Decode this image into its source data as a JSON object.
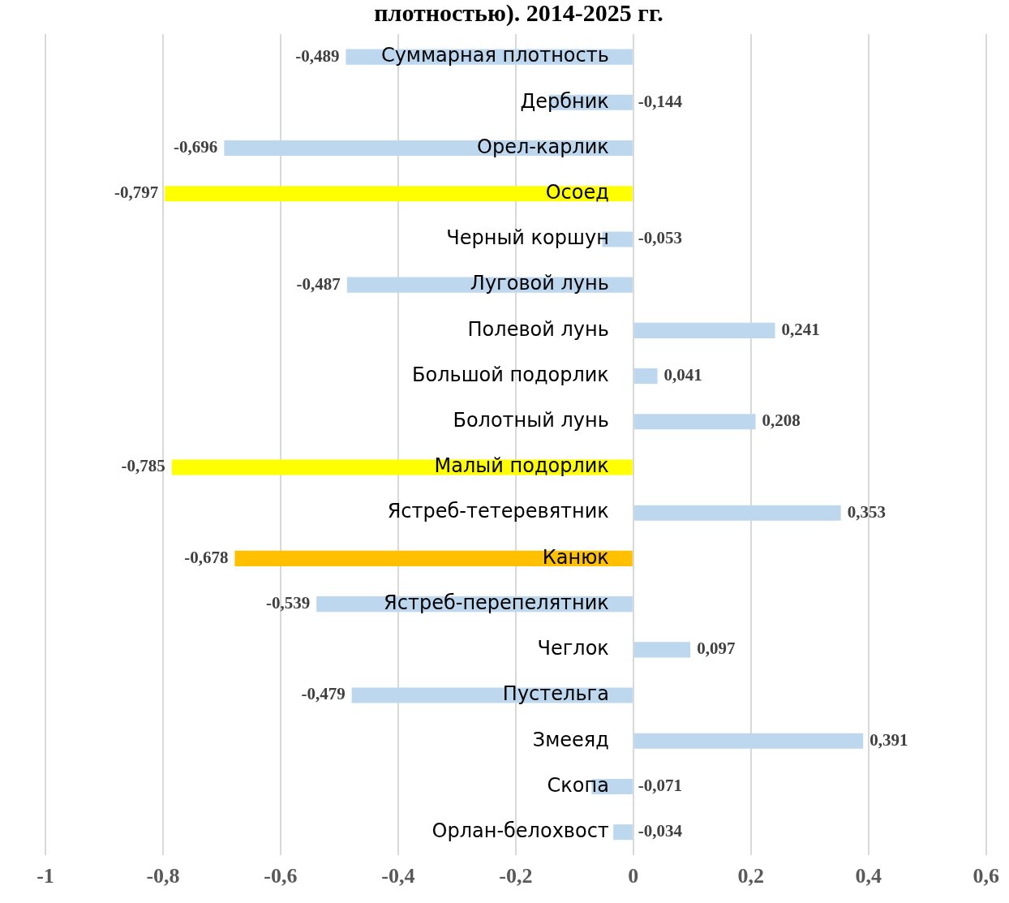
{
  "chart_data": {
    "type": "bar",
    "orientation": "horizontal",
    "title": "плотностью). 2014-2025 гг.",
    "categories": [
      "Суммарная плотность",
      "Дербник",
      "Орел-карлик",
      "Осоед",
      "Черный коршун",
      "Луговой лунь",
      "Полевой лунь",
      "Большой подорлик",
      "Болотный лунь",
      "Малый подорлик",
      "Ястреб-тетеревятник",
      "Канюк",
      "Ястреб-перепелятник",
      "Чеглок",
      "Пустельга",
      "Змееяд",
      "Скопа",
      "Орлан-белохвост"
    ],
    "values": [
      -0.489,
      -0.144,
      -0.696,
      -0.797,
      -0.053,
      -0.487,
      0.241,
      0.041,
      0.208,
      -0.785,
      0.353,
      -0.678,
      -0.539,
      0.097,
      -0.479,
      0.391,
      -0.071,
      -0.034
    ],
    "value_labels": [
      "-0,489",
      "-0,144",
      "-0,696",
      "-0,797",
      "-0,053",
      "-0,487",
      "0,241",
      "0,041",
      "0,208",
      "-0,785",
      "0,353",
      "-0,678",
      "-0,539",
      "0,097",
      "-0,479",
      "0,391",
      "-0,071",
      "-0,034"
    ],
    "colors": [
      "#bdd7ee",
      "#bdd7ee",
      "#bdd7ee",
      "#ffff00",
      "#bdd7ee",
      "#bdd7ee",
      "#bdd7ee",
      "#bdd7ee",
      "#bdd7ee",
      "#ffff00",
      "#bdd7ee",
      "#ffc000",
      "#bdd7ee",
      "#bdd7ee",
      "#bdd7ee",
      "#bdd7ee",
      "#bdd7ee",
      "#bdd7ee"
    ],
    "xlim": [
      -1,
      0.6
    ],
    "xticks": [
      -1,
      {
        "value": -0.8,
        "label": "-0,8"
      },
      {
        "value": -0.6,
        "label": "-0,6"
      },
      {
        "value": -0.4,
        "label": "-0,4"
      },
      {
        "value": -0.2,
        "label": "-0,2"
      },
      0,
      {
        "value": 0.2,
        "label": "0,2"
      },
      {
        "value": 0.4,
        "label": "0,4"
      },
      {
        "value": 0.6,
        "label": "0,6"
      }
    ],
    "grid": "x"
  }
}
